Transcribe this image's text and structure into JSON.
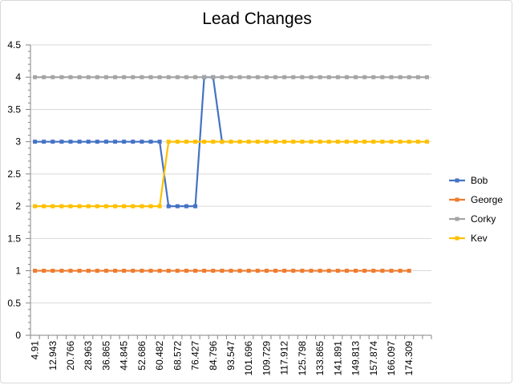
{
  "chart_data": {
    "type": "line",
    "title": "Lead Changes",
    "ylim": [
      0,
      4.5
    ],
    "yticks": [
      "0",
      "0.5",
      "1",
      "1.5",
      "2",
      "2.5",
      "3",
      "3.5",
      "4",
      "4.5"
    ],
    "x_tick_labels": [
      "4.91",
      "12.943",
      "20.766",
      "28.963",
      "36.865",
      "44.845",
      "52.686",
      "60.482",
      "68.572",
      "76.427",
      "84.796",
      "93.547",
      "101.696",
      "109.729",
      "117.912",
      "125.798",
      "133.865",
      "141.891",
      "149.813",
      "157.874",
      "166.097",
      "174.309"
    ],
    "grid": true,
    "legend_position": "right",
    "point_count": 45,
    "series": [
      {
        "name": "Bob",
        "color": "#4472c4",
        "values": [
          3,
          3,
          3,
          3,
          3,
          3,
          3,
          3,
          3,
          3,
          3,
          3,
          3,
          3,
          3,
          2,
          2,
          2,
          2,
          4,
          4,
          3
        ]
      },
      {
        "name": "George",
        "color": "#ed7d31",
        "values": [
          1,
          1,
          1,
          1,
          1,
          1,
          1,
          1,
          1,
          1,
          1,
          1,
          1,
          1,
          1,
          1,
          1,
          1,
          1,
          1,
          1,
          1,
          1,
          1,
          1,
          1,
          1,
          1,
          1,
          1,
          1,
          1,
          1,
          1,
          1,
          1,
          1,
          1,
          1,
          1,
          1,
          1,
          1
        ]
      },
      {
        "name": "Corky",
        "color": "#a5a5a5",
        "values": [
          4,
          4,
          4,
          4,
          4,
          4,
          4,
          4,
          4,
          4,
          4,
          4,
          4,
          4,
          4,
          4,
          4,
          4,
          4,
          4,
          4,
          4,
          4,
          4,
          4,
          4,
          4,
          4,
          4,
          4,
          4,
          4,
          4,
          4,
          4,
          4,
          4,
          4,
          4,
          4,
          4,
          4,
          4,
          4,
          4
        ]
      },
      {
        "name": "Kev",
        "color": "#ffc000",
        "values": [
          2,
          2,
          2,
          2,
          2,
          2,
          2,
          2,
          2,
          2,
          2,
          2,
          2,
          2,
          2,
          3,
          3,
          3,
          3,
          3,
          3,
          3,
          3,
          3,
          3,
          3,
          3,
          3,
          3,
          3,
          3,
          3,
          3,
          3,
          3,
          3,
          3,
          3,
          3,
          3,
          3,
          3,
          3,
          3,
          3
        ]
      }
    ]
  }
}
